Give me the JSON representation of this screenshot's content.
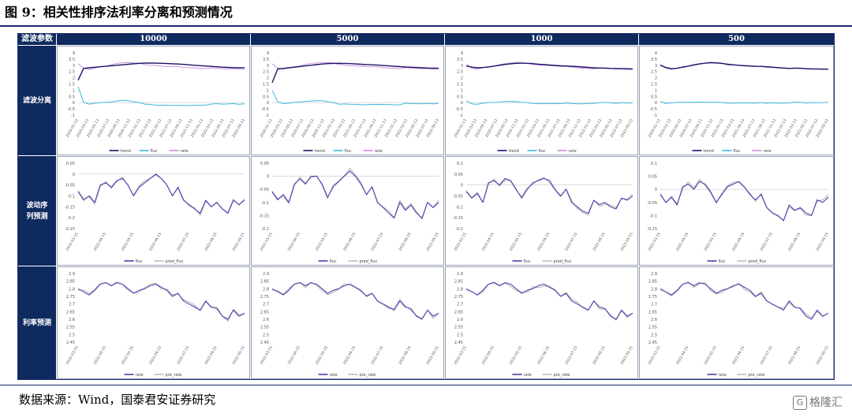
{
  "figure": {
    "title": "图 9：相关性排序法利率分离和预测情况",
    "source": "数据来源：Wind，国泰君安证券研究",
    "watermark": "格隆汇",
    "watermark_logo": "G"
  },
  "header": {
    "corner_label": "滤波参数",
    "columns": [
      "10000",
      "5000",
      "1000",
      "500"
    ]
  },
  "rows": [
    {
      "label": "滤波分离"
    },
    {
      "label": "波动序列预测"
    },
    {
      "label": "利率预测"
    }
  ],
  "colors": {
    "trend": "#1a1464",
    "fluc": "#3db8e0",
    "rate_row1": "#c98be0",
    "fluc_pred": "#4a3fb0",
    "pred": "#bdbdbd",
    "rate_row3": "#4a3fb0",
    "header_bg": "#0f2a5e"
  },
  "chart_data": [
    {
      "type": "line",
      "row": "滤波分离",
      "ylim": [
        -1,
        4
      ],
      "yticks": [
        "4",
        "3.5",
        "3",
        "2.5",
        "2",
        "1.5",
        "1",
        "0.5",
        "0",
        "-0.5",
        "-1"
      ],
      "xticks": [
        "2020-01-13",
        "2020-03-13",
        "2020-05-13",
        "2020-07-13",
        "2020-09-13",
        "2020-11-13",
        "2021-01-13",
        "2021-03-13",
        "2021-05-13",
        "2021-07-13",
        "2021-09-13",
        "2021-11-13",
        "2022-01-13",
        "2022-03-13",
        "2022-05-13",
        "2022-07-13",
        "2022-09-13"
      ],
      "legend": [
        "trend",
        "fluc",
        "rate"
      ],
      "rate": [
        3.1,
        2.75,
        2.68,
        2.78,
        2.88,
        2.95,
        3.05,
        3.15,
        3.2,
        3.25,
        3.2,
        3.15,
        3.05,
        3.02,
        2.98,
        2.95,
        2.92,
        2.9,
        2.9,
        2.85,
        2.82,
        2.78,
        2.75,
        2.72,
        2.8,
        2.78,
        2.72,
        2.7,
        2.72,
        2.68,
        2.7
      ],
      "panels": [
        {
          "column": "10000",
          "trend": [
            1.8,
            2.75,
            2.8,
            2.84,
            2.88,
            2.92,
            2.96,
            3.0,
            3.04,
            3.08,
            3.12,
            3.15,
            3.17,
            3.18,
            3.17,
            3.16,
            3.14,
            3.12,
            3.1,
            3.07,
            3.04,
            3.0,
            2.97,
            2.94,
            2.91,
            2.88,
            2.85,
            2.83,
            2.81,
            2.8,
            2.79
          ],
          "fluc": [
            1.3,
            0.0,
            -0.12,
            -0.06,
            0.0,
            0.03,
            0.09,
            0.15,
            0.16,
            0.17,
            0.08,
            0.0,
            -0.12,
            -0.16,
            -0.19,
            -0.21,
            -0.22,
            -0.22,
            -0.2,
            -0.22,
            -0.22,
            -0.22,
            -0.22,
            -0.22,
            -0.11,
            -0.1,
            -0.13,
            -0.13,
            -0.09,
            -0.12,
            -0.09
          ]
        },
        {
          "column": "5000",
          "trend": [
            1.6,
            2.7,
            2.75,
            2.8,
            2.85,
            2.9,
            2.95,
            3.0,
            3.05,
            3.1,
            3.13,
            3.15,
            3.16,
            3.15,
            3.13,
            3.11,
            3.08,
            3.06,
            3.04,
            3.01,
            2.98,
            2.95,
            2.92,
            2.89,
            2.86,
            2.84,
            2.82,
            2.8,
            2.78,
            2.77,
            2.76
          ],
          "fluc": [
            1.0,
            0.05,
            -0.07,
            -0.02,
            0.03,
            0.05,
            0.1,
            0.15,
            0.15,
            0.15,
            0.07,
            0.0,
            -0.11,
            -0.13,
            -0.15,
            -0.16,
            -0.16,
            -0.16,
            -0.14,
            -0.16,
            -0.16,
            -0.17,
            -0.17,
            -0.17,
            -0.06,
            -0.06,
            -0.1,
            -0.1,
            -0.06,
            -0.09,
            -0.06
          ]
        },
        {
          "column": "1000",
          "trend": [
            2.95,
            2.85,
            2.8,
            2.82,
            2.87,
            2.93,
            3.0,
            3.07,
            3.12,
            3.16,
            3.17,
            3.16,
            3.13,
            3.09,
            3.05,
            3.02,
            2.99,
            2.96,
            2.94,
            2.92,
            2.89,
            2.86,
            2.83,
            2.8,
            2.78,
            2.77,
            2.75,
            2.74,
            2.73,
            2.72,
            2.71
          ],
          "fluc": [
            0.15,
            -0.1,
            -0.12,
            -0.04,
            0.01,
            0.02,
            0.05,
            0.08,
            0.08,
            0.09,
            0.03,
            -0.01,
            -0.08,
            -0.07,
            -0.07,
            -0.07,
            -0.07,
            -0.06,
            -0.04,
            -0.07,
            -0.07,
            -0.08,
            -0.08,
            -0.08,
            0.02,
            0.01,
            -0.03,
            -0.04,
            -0.01,
            -0.04,
            -0.01
          ]
        },
        {
          "column": "500",
          "trend": [
            3.0,
            2.82,
            2.72,
            2.76,
            2.85,
            2.93,
            3.02,
            3.11,
            3.17,
            3.21,
            3.19,
            3.15,
            3.08,
            3.04,
            3.0,
            2.97,
            2.94,
            2.92,
            2.91,
            2.88,
            2.85,
            2.81,
            2.78,
            2.75,
            2.76,
            2.76,
            2.73,
            2.71,
            2.71,
            2.69,
            2.69
          ],
          "fluc": [
            0.1,
            -0.07,
            -0.04,
            0.02,
            0.03,
            0.02,
            0.03,
            0.04,
            0.03,
            0.04,
            0.01,
            0.0,
            -0.03,
            -0.02,
            -0.02,
            -0.02,
            -0.02,
            -0.02,
            -0.01,
            -0.03,
            -0.03,
            -0.03,
            -0.03,
            -0.03,
            0.04,
            0.02,
            -0.01,
            -0.01,
            0.01,
            -0.01,
            0.01
          ]
        }
      ]
    },
    {
      "type": "line",
      "row": "波动序列预测",
      "xticks": [
        "2022-03-15",
        "2022-04-15",
        "2022-05-15",
        "2022-06-15",
        "2022-07-15",
        "2022-08-15",
        "2022-09-15"
      ],
      "legend": [
        "fluc",
        "pred_fluc"
      ],
      "panels": [
        {
          "column": "10000",
          "ylim": [
            -0.25,
            0.05
          ],
          "yticks": [
            "0.05",
            "0",
            "-0.05",
            "-0.1",
            "-0.15",
            "-0.2",
            "-0.25"
          ],
          "fluc": [
            -0.08,
            -0.12,
            -0.1,
            -0.13,
            -0.05,
            -0.04,
            -0.06,
            -0.03,
            -0.02,
            -0.05,
            -0.1,
            -0.06,
            -0.04,
            -0.02,
            0.0,
            -0.02,
            -0.05,
            -0.1,
            -0.06,
            -0.12,
            -0.14,
            -0.16,
            -0.18,
            -0.12,
            -0.15,
            -0.13,
            -0.16,
            -0.18,
            -0.12,
            -0.14,
            -0.12
          ]
        },
        {
          "column": "5000",
          "ylim": [
            -0.2,
            0.05
          ],
          "yticks": [
            "0.05",
            "0",
            "-0.05",
            "-0.1",
            "-0.15",
            "-0.2"
          ],
          "fluc": [
            -0.06,
            -0.09,
            -0.07,
            -0.1,
            -0.03,
            -0.01,
            -0.03,
            0.0,
            0.0,
            -0.03,
            -0.08,
            -0.04,
            -0.02,
            0.0,
            0.02,
            0.0,
            -0.03,
            -0.07,
            -0.04,
            -0.1,
            -0.12,
            -0.14,
            -0.16,
            -0.1,
            -0.13,
            -0.11,
            -0.14,
            -0.16,
            -0.1,
            -0.12,
            -0.1
          ]
        },
        {
          "column": "1000",
          "ylim": [
            -0.2,
            0.1
          ],
          "yticks": [
            "0.1",
            "0.05",
            "0",
            "-0.05",
            "-0.1",
            "-0.15",
            "-0.2"
          ],
          "fluc": [
            -0.03,
            -0.06,
            -0.04,
            -0.08,
            0.01,
            0.02,
            0.0,
            0.03,
            0.02,
            -0.02,
            -0.06,
            -0.02,
            0.01,
            0.02,
            0.03,
            0.02,
            -0.02,
            -0.05,
            -0.02,
            -0.08,
            -0.1,
            -0.12,
            -0.13,
            -0.07,
            -0.09,
            -0.08,
            -0.1,
            -0.11,
            -0.06,
            -0.07,
            -0.05
          ]
        },
        {
          "column": "500",
          "ylim": [
            -0.15,
            0.1
          ],
          "yticks": [
            "0.1",
            "0.05",
            "0",
            "-0.05",
            "-0.1",
            "-0.15"
          ],
          "fluc": [
            -0.02,
            -0.05,
            -0.03,
            -0.06,
            0.01,
            0.02,
            0.0,
            0.03,
            0.02,
            -0.01,
            -0.05,
            -0.02,
            0.01,
            0.02,
            0.03,
            0.01,
            -0.02,
            -0.04,
            -0.02,
            -0.07,
            -0.09,
            -0.1,
            -0.12,
            -0.06,
            -0.08,
            -0.07,
            -0.09,
            -0.1,
            -0.04,
            -0.05,
            -0.03
          ]
        }
      ]
    },
    {
      "type": "line",
      "row": "利率预测",
      "ylim": [
        2.45,
        2.9
      ],
      "yticks": [
        "2.9",
        "2.85",
        "2.8",
        "2.75",
        "2.7",
        "2.65",
        "2.6",
        "2.55",
        "2.5",
        "2.45"
      ],
      "xticks": [
        "2022-03-15",
        "2022-04-15",
        "2022-05-15",
        "2022-06-15",
        "2022-07-15",
        "2022-08-15",
        "2022-09-15"
      ],
      "legend": [
        "rate",
        "pre_rate"
      ],
      "rate": [
        2.8,
        2.78,
        2.76,
        2.79,
        2.83,
        2.84,
        2.82,
        2.84,
        2.83,
        2.8,
        2.77,
        2.79,
        2.8,
        2.82,
        2.83,
        2.81,
        2.79,
        2.75,
        2.77,
        2.72,
        2.7,
        2.68,
        2.66,
        2.72,
        2.68,
        2.67,
        2.62,
        2.6,
        2.66,
        2.62,
        2.64
      ]
    }
  ]
}
